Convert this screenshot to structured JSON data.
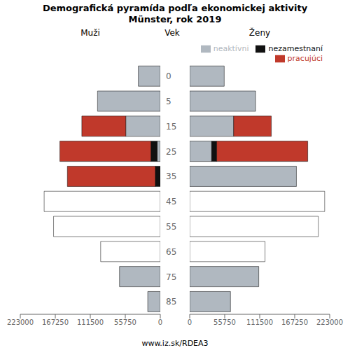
{
  "chart_data": [
    {
      "type": "bar",
      "title": "Demografická pyramída podľa ekonomickej aktivity",
      "subtitle": "Münster, rok 2019",
      "xlabel": "Muži",
      "ylabel": "Vek",
      "orientation": "horizontal",
      "stacked": true,
      "categories": [
        85,
        75,
        65,
        55,
        45,
        35,
        25,
        15,
        5,
        0
      ],
      "xlim": [
        223000,
        0
      ],
      "xticks": [
        0,
        55750,
        111500,
        167250,
        223000
      ],
      "series": [
        {
          "name": "neaktívni",
          "color": "#b0b8c0",
          "colors": [
            "#b0b8c0",
            "#b0b8c0",
            "#ffffff",
            "#ffffff",
            "#ffffff",
            "#b0b8c0",
            "#b0b8c0",
            "#b0b8c0",
            "#b0b8c0",
            "#b0b8c0"
          ],
          "values": [
            20000,
            65000,
            95000,
            170000,
            185000,
            0,
            5000,
            55000,
            100000,
            35000
          ]
        },
        {
          "name": "nezamestnaní",
          "color": "#111111",
          "values": [
            0,
            0,
            0,
            0,
            0,
            8000,
            10000,
            0,
            0,
            0
          ]
        },
        {
          "name": "pracujúci",
          "color": "#c0392b",
          "values": [
            0,
            0,
            0,
            0,
            0,
            140000,
            145000,
            70000,
            0,
            0
          ]
        }
      ]
    },
    {
      "type": "bar",
      "xlabel": "Ženy",
      "orientation": "horizontal",
      "stacked": true,
      "legend": "upper right",
      "annotations": [
        "www.iz.sk/RDEA3"
      ],
      "categories": [
        85,
        75,
        65,
        55,
        45,
        35,
        25,
        15,
        5,
        0
      ],
      "xlim": [
        0,
        223000
      ],
      "xticks": [
        0,
        55750,
        111500,
        167250,
        223000
      ],
      "series": [
        {
          "name": "neaktívni",
          "color": "#b0b8c0",
          "colors": [
            "#b0b8c0",
            "#b0b8c0",
            "#ffffff",
            "#ffffff",
            "#ffffff",
            "#b0b8c0",
            "#b0b8c0",
            "#b0b8c0",
            "#b0b8c0",
            "#b0b8c0"
          ],
          "values": [
            65000,
            110000,
            120000,
            205000,
            215000,
            170000,
            35000,
            70000,
            105000,
            55000
          ]
        },
        {
          "name": "nezamestnaní",
          "color": "#111111",
          "values": [
            0,
            0,
            0,
            0,
            0,
            0,
            8000,
            0,
            0,
            0
          ]
        },
        {
          "name": "pracujúci",
          "color": "#c0392b",
          "values": [
            0,
            0,
            0,
            0,
            0,
            0,
            145000,
            60000,
            0,
            0
          ]
        }
      ]
    }
  ]
}
